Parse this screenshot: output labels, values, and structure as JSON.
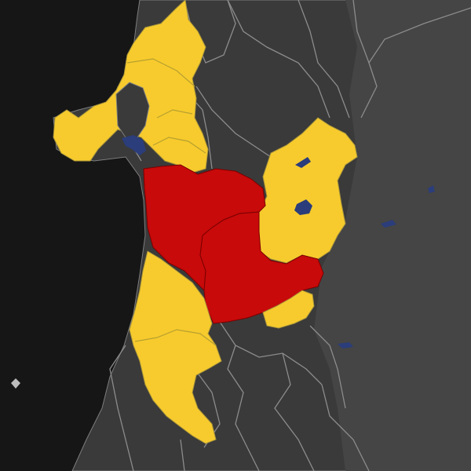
{
  "map": {
    "colors": {
      "sea": "#161616",
      "land": "#3a3a3a",
      "land_far": "#454545",
      "border": "#8a8a8a",
      "yellow": "#f7cb2d",
      "red": "#c80a0a",
      "water": "#2b3d7a",
      "region_border": "#a8943a"
    },
    "legend": []
  }
}
